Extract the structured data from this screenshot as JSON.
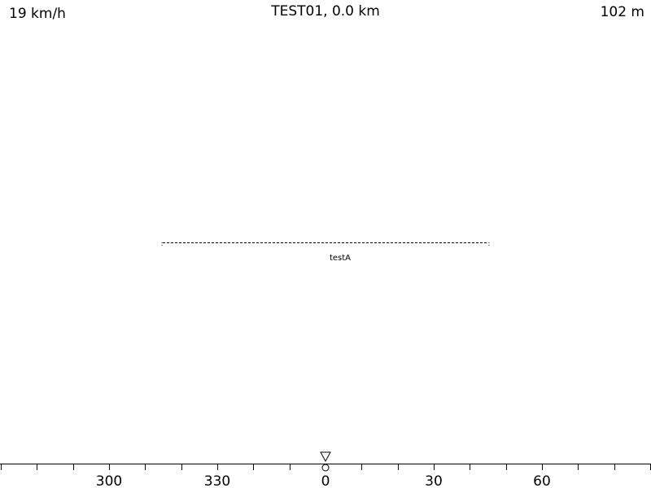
{
  "header": {
    "speed": "19 km/h",
    "title": "TEST01, 0.0 km",
    "altitude": "102 m"
  },
  "obstacle": {
    "label": "testA"
  },
  "compass": {
    "labels": [
      {
        "deg": 300,
        "text": "300"
      },
      {
        "deg": 330,
        "text": "330"
      },
      {
        "deg": 0,
        "text": "0"
      },
      {
        "deg": 30,
        "text": "30"
      },
      {
        "deg": 60,
        "text": "60"
      }
    ],
    "heading": 0,
    "marker_icon": "triangle-down-icon",
    "pivot_icon": "circle-icon"
  },
  "colors": {
    "foreground": "#000000",
    "background": "#ffffff"
  }
}
